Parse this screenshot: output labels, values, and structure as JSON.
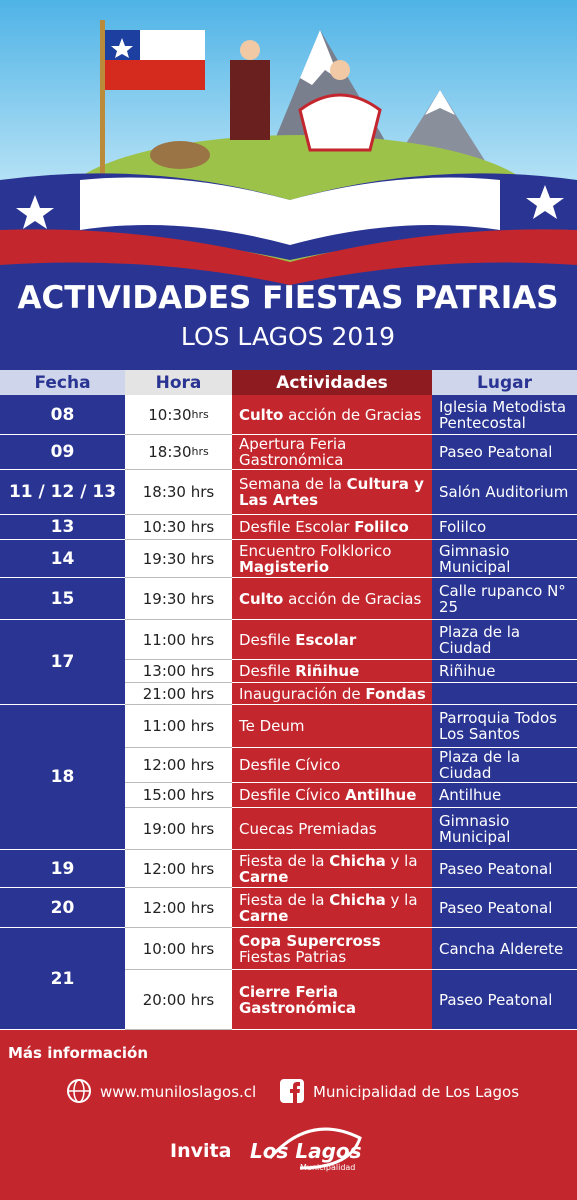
{
  "header": {
    "title": "ACTIVIDADES FIESTAS PATRIAS",
    "subtitle": "LOS LAGOS 2019"
  },
  "table": {
    "columns": [
      "Fecha",
      "Hora",
      "Actividades",
      "Lugar"
    ],
    "rows": [
      {
        "fecha": "08",
        "entries": [
          {
            "hora": {
              "time": "10:30",
              "suffix": "hrs"
            },
            "actividad": [
              {
                "text": "Culto",
                "bold": true
              },
              {
                "text": " acción de Gracias"
              }
            ],
            "lugar": "Iglesia Metodista Pentecostal"
          }
        ]
      },
      {
        "fecha": "09",
        "entries": [
          {
            "hora": {
              "time": "18:30",
              "suffix": "hrs"
            },
            "actividad": [
              {
                "text": "Apertura Feria Gastronómica"
              }
            ],
            "lugar": "Paseo Peatonal"
          }
        ]
      },
      {
        "fecha": "11 / 12 / 13",
        "entries": [
          {
            "hora": {
              "time": "18:30 hrs"
            },
            "actividad": [
              {
                "text": "Semana de la "
              },
              {
                "text": "Cultura y Las Artes",
                "bold": true
              }
            ],
            "lugar": "Salón Auditorium"
          }
        ]
      },
      {
        "fecha": "13",
        "entries": [
          {
            "hora": {
              "time": "10:30 hrs"
            },
            "actividad": [
              {
                "text": "Desfile Escolar "
              },
              {
                "text": "Folilco",
                "bold": true
              }
            ],
            "lugar": "Folilco"
          }
        ]
      },
      {
        "fecha": "14",
        "entries": [
          {
            "hora": {
              "time": "19:30 hrs"
            },
            "actividad": [
              {
                "text": "Encuentro Folklorico "
              },
              {
                "text": "Magisterio",
                "bold": true
              }
            ],
            "lugar": "Gimnasio Municipal"
          }
        ]
      },
      {
        "fecha": "15",
        "entries": [
          {
            "hora": {
              "time": "19:30 hrs"
            },
            "actividad": [
              {
                "text": "Culto",
                "bold": true
              },
              {
                "text": " acción de Gracias"
              }
            ],
            "lugar": "Calle rupanco N° 25"
          }
        ]
      },
      {
        "fecha": "17",
        "entries": [
          {
            "hora": {
              "time": "11:00 hrs"
            },
            "actividad": [
              {
                "text": "Desfile "
              },
              {
                "text": "Escolar",
                "bold": true
              }
            ],
            "lugar": "Plaza de la Ciudad"
          },
          {
            "hora": {
              "time": "13:00 hrs"
            },
            "actividad": [
              {
                "text": "Desfile "
              },
              {
                "text": "Riñihue",
                "bold": true
              }
            ],
            "lugar": "Riñihue"
          },
          {
            "hora": {
              "time": "21:00 hrs"
            },
            "actividad": [
              {
                "text": "Inauguración de "
              },
              {
                "text": "Fondas",
                "bold": true
              }
            ],
            "lugar": null
          }
        ]
      },
      {
        "fecha": "18",
        "entries": [
          {
            "hora": {
              "time": "11:00 hrs"
            },
            "actividad": [
              {
                "text": "Te Deum"
              }
            ],
            "lugar": "Parroquia Todos Los Santos"
          },
          {
            "hora": {
              "time": "12:00 hrs"
            },
            "actividad": [
              {
                "text": "Desfile Cívico"
              }
            ],
            "lugar": "Plaza de la Ciudad"
          },
          {
            "hora": {
              "time": "15:00 hrs"
            },
            "actividad": [
              {
                "text": "Desfile Cívico "
              },
              {
                "text": "Antilhue",
                "bold": true
              }
            ],
            "lugar": "Antilhue"
          },
          {
            "hora": {
              "time": "19:00 hrs"
            },
            "actividad": [
              {
                "text": "Cuecas Premiadas"
              }
            ],
            "lugar": "Gimnasio Municipal"
          }
        ]
      },
      {
        "fecha": "19",
        "entries": [
          {
            "hora": {
              "time": "12:00 hrs"
            },
            "actividad": [
              {
                "text": "Fiesta de la "
              },
              {
                "text": "Chicha",
                "bold": true
              },
              {
                "text": " y la "
              },
              {
                "text": "Carne",
                "bold": true
              }
            ],
            "lugar": "Paseo Peatonal"
          }
        ]
      },
      {
        "fecha": "20",
        "entries": [
          {
            "hora": {
              "time": "12:00 hrs"
            },
            "actividad": [
              {
                "text": "Fiesta de la "
              },
              {
                "text": "Chicha",
                "bold": true
              },
              {
                "text": " y la "
              },
              {
                "text": "Carne",
                "bold": true
              }
            ],
            "lugar": "Paseo Peatonal"
          }
        ]
      },
      {
        "fecha": "21",
        "entries": [
          {
            "hora": {
              "time": "10:00 hrs"
            },
            "actividad": [
              {
                "text": "Copa Supercross",
                "bold": true
              },
              {
                "text": " Fiestas Patrias"
              }
            ],
            "lugar": "Cancha Alderete"
          },
          {
            "hora": {
              "time": "20:00 hrs"
            },
            "actividad": [
              {
                "text": "Cierre Feria Gastronómica",
                "bold": true
              }
            ],
            "lugar": "Paseo Peatonal"
          }
        ]
      }
    ]
  },
  "footer": {
    "info_title": "Más información",
    "website": "www.muniloslagos.cl",
    "facebook": "Municipalidad de Los Lagos",
    "invita": "Invita",
    "logo_main": "Los Lagos",
    "logo_sub": "Municipalidad"
  }
}
